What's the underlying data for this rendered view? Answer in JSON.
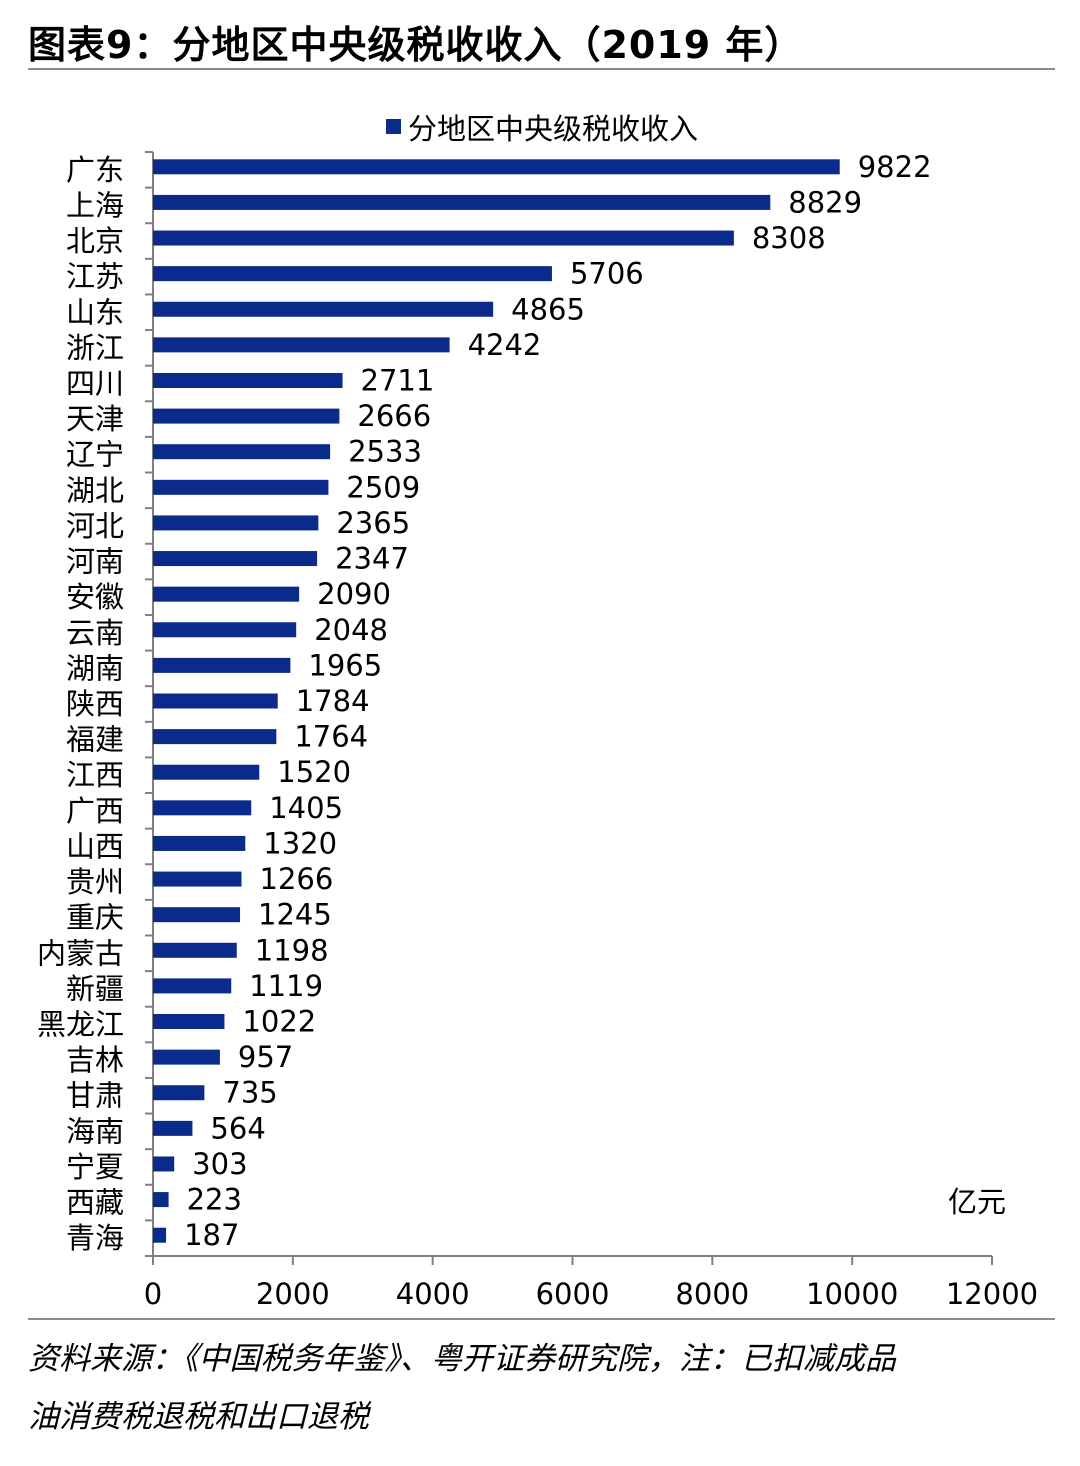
{
  "figure": {
    "title": "图表9：分地区中央级税收收入（2019 年）",
    "source_line1": "资料来源：《中国税务年鉴》、粤开证券研究院，注：已扣减成品",
    "source_line2": "油消费税退税和出口退税"
  },
  "chart_data": {
    "type": "bar",
    "orientation": "horizontal",
    "title": "",
    "unit_label": "亿元",
    "legend": {
      "entries": [
        "分地区中央级税收收入"
      ],
      "placement": "top-center"
    },
    "categories": [
      "广东",
      "上海",
      "北京",
      "江苏",
      "山东",
      "浙江",
      "四川",
      "天津",
      "辽宁",
      "湖北",
      "河北",
      "河南",
      "安徽",
      "云南",
      "湖南",
      "陕西",
      "福建",
      "江西",
      "广西",
      "山西",
      "贵州",
      "重庆",
      "内蒙古",
      "新疆",
      "黑龙江",
      "吉林",
      "甘肃",
      "海南",
      "宁夏",
      "西藏",
      "青海"
    ],
    "series": [
      {
        "name": "分地区中央级税收收入",
        "color": "#0a2a8c",
        "values": [
          9822,
          8829,
          8308,
          5706,
          4865,
          4242,
          2711,
          2666,
          2533,
          2509,
          2365,
          2347,
          2090,
          2048,
          1965,
          1784,
          1764,
          1520,
          1405,
          1320,
          1266,
          1245,
          1198,
          1119,
          1022,
          957,
          735,
          564,
          303,
          223,
          187
        ]
      }
    ],
    "xlim": [
      0,
      12000
    ],
    "xticks": [
      "0",
      "2000",
      "4000",
      "6000",
      "8000",
      "10000",
      "12000"
    ],
    "grid": false
  }
}
